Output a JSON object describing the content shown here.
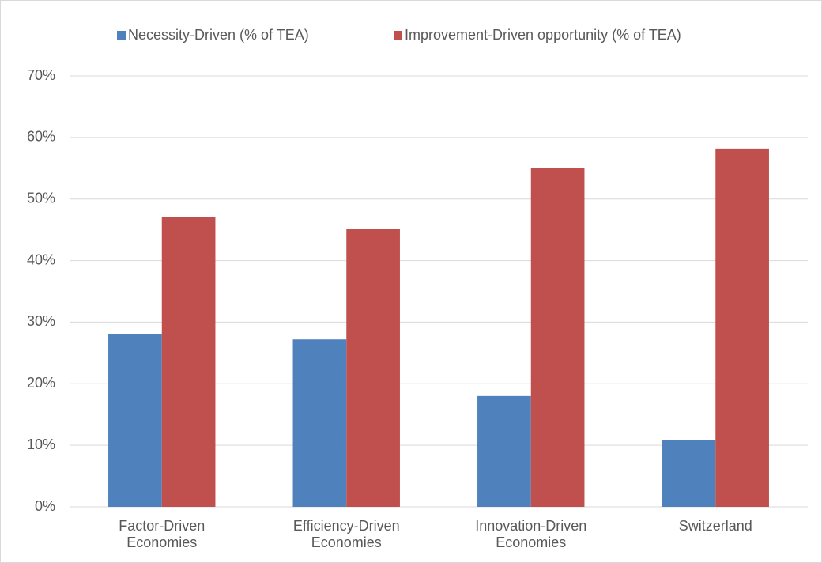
{
  "chart_data": {
    "type": "bar",
    "categories": [
      "Factor-Driven Economies",
      "Efficiency-Driven Economies",
      "Innovation-Driven Economies",
      "Switzerland"
    ],
    "series": [
      {
        "name": "Necessity-Driven (% of TEA)",
        "color": "#4f81bd",
        "values": [
          28.1,
          27.2,
          18.0,
          10.8
        ]
      },
      {
        "name": "Improvement-Driven opportunity (% of TEA)",
        "color": "#c0504d",
        "values": [
          47.1,
          45.1,
          55.0,
          58.2
        ]
      }
    ],
    "ylim": [
      0,
      70
    ],
    "yticks": [
      {
        "value": 0,
        "label": "0%"
      },
      {
        "value": 10,
        "label": "10%"
      },
      {
        "value": 20,
        "label": "20%"
      },
      {
        "value": 30,
        "label": "30%"
      },
      {
        "value": 40,
        "label": "40%"
      },
      {
        "value": 50,
        "label": "50%"
      },
      {
        "value": 60,
        "label": "60%"
      },
      {
        "value": 70,
        "label": "70%"
      }
    ],
    "grid": true,
    "legend": "top"
  }
}
